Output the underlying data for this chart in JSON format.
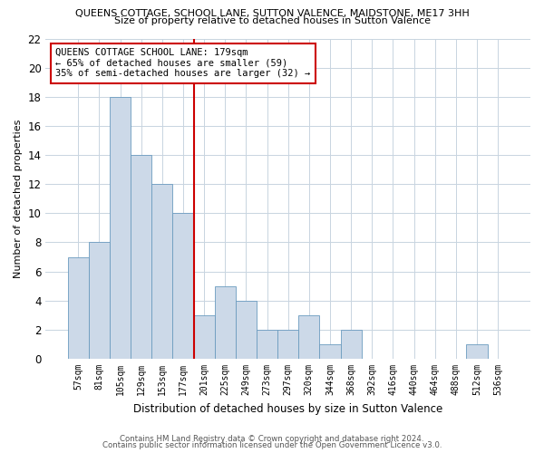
{
  "title": "QUEENS COTTAGE, SCHOOL LANE, SUTTON VALENCE, MAIDSTONE, ME17 3HH",
  "subtitle": "Size of property relative to detached houses in Sutton Valence",
  "xlabel": "Distribution of detached houses by size in Sutton Valence",
  "ylabel": "Number of detached properties",
  "categories": [
    "57sqm",
    "81sqm",
    "105sqm",
    "129sqm",
    "153sqm",
    "177sqm",
    "201sqm",
    "225sqm",
    "249sqm",
    "273sqm",
    "297sqm",
    "320sqm",
    "344sqm",
    "368sqm",
    "392sqm",
    "416sqm",
    "440sqm",
    "464sqm",
    "488sqm",
    "512sqm",
    "536sqm"
  ],
  "values": [
    7,
    8,
    18,
    14,
    12,
    10,
    3,
    5,
    4,
    2,
    2,
    3,
    1,
    2,
    0,
    0,
    0,
    0,
    0,
    1,
    0
  ],
  "bar_color": "#ccd9e8",
  "bar_edge_color": "#6b9bbf",
  "vline_x": 5.5,
  "vline_color": "#cc0000",
  "annotation_title": "QUEENS COTTAGE SCHOOL LANE: 179sqm",
  "annotation_line1": "← 65% of detached houses are smaller (59)",
  "annotation_line2": "35% of semi-detached houses are larger (32) →",
  "annotation_box_color": "#cc0000",
  "ylim": [
    0,
    22
  ],
  "yticks": [
    0,
    2,
    4,
    6,
    8,
    10,
    12,
    14,
    16,
    18,
    20,
    22
  ],
  "footer1": "Contains HM Land Registry data © Crown copyright and database right 2024.",
  "footer2": "Contains public sector information licensed under the Open Government Licence v3.0.",
  "background_color": "#ffffff",
  "grid_color": "#c8d4e0"
}
